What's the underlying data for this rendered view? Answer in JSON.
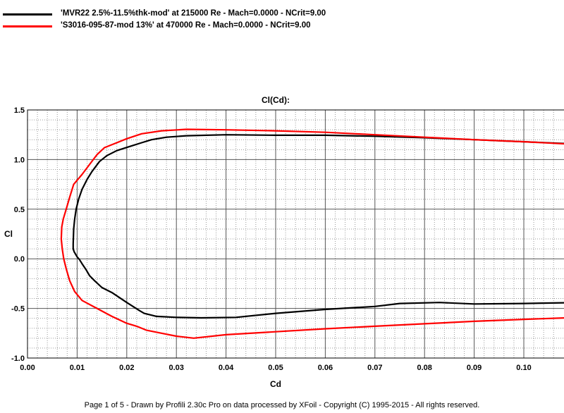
{
  "chart_data": {
    "type": "line",
    "title": "Cl(Cd):",
    "xlabel": "Cd",
    "ylabel": "Cl",
    "xlim": [
      0.0,
      0.105
    ],
    "ylim": [
      -1.0,
      1.5
    ],
    "xticks": [
      "0.00",
      "0.01",
      "0.02",
      "0.03",
      "0.04",
      "0.05",
      "0.06",
      "0.07",
      "0.08",
      "0.09",
      "0.10"
    ],
    "xtick_values": [
      0.0,
      0.01,
      0.02,
      0.03,
      0.04,
      0.05,
      0.06,
      0.07,
      0.08,
      0.09,
      0.1
    ],
    "yticks": [
      "-1.0",
      "-0.5",
      "0.0",
      "0.5",
      "1.0",
      "1.5"
    ],
    "ytick_values": [
      -1.0,
      -0.5,
      0.0,
      0.5,
      1.0,
      1.5
    ],
    "grid": true,
    "legend_position": "top-left, above plot",
    "series": [
      {
        "name": "'MVR22 2.5%-11.5%thk-mod' at 215000 Re - Mach=0.0000 - NCrit=9.00",
        "color": "#000000",
        "points": [
          [
            0.1115,
            -0.44
          ],
          [
            0.1,
            -0.45
          ],
          [
            0.09,
            -0.455
          ],
          [
            0.083,
            -0.44
          ],
          [
            0.075,
            -0.45
          ],
          [
            0.07,
            -0.48
          ],
          [
            0.06,
            -0.51
          ],
          [
            0.05,
            -0.55
          ],
          [
            0.042,
            -0.59
          ],
          [
            0.035,
            -0.595
          ],
          [
            0.03,
            -0.59
          ],
          [
            0.026,
            -0.58
          ],
          [
            0.0235,
            -0.55
          ],
          [
            0.0225,
            -0.52
          ],
          [
            0.02,
            -0.44
          ],
          [
            0.017,
            -0.34
          ],
          [
            0.015,
            -0.29
          ],
          [
            0.0135,
            -0.22
          ],
          [
            0.0125,
            -0.17
          ],
          [
            0.0118,
            -0.11
          ],
          [
            0.011,
            -0.05
          ],
          [
            0.0105,
            -0.01
          ],
          [
            0.01,
            0.02
          ],
          [
            0.0094,
            0.07
          ],
          [
            0.0092,
            0.1
          ],
          [
            0.0092,
            0.15
          ],
          [
            0.0093,
            0.3
          ],
          [
            0.0095,
            0.4
          ],
          [
            0.0098,
            0.5
          ],
          [
            0.0103,
            0.6
          ],
          [
            0.011,
            0.7
          ],
          [
            0.012,
            0.8
          ],
          [
            0.013,
            0.88
          ],
          [
            0.0145,
            0.98
          ],
          [
            0.016,
            1.04
          ],
          [
            0.018,
            1.09
          ],
          [
            0.0205,
            1.13
          ],
          [
            0.023,
            1.17
          ],
          [
            0.025,
            1.2
          ],
          [
            0.028,
            1.225
          ],
          [
            0.032,
            1.24
          ],
          [
            0.04,
            1.25
          ],
          [
            0.05,
            1.245
          ],
          [
            0.06,
            1.245
          ],
          [
            0.07,
            1.235
          ],
          [
            0.08,
            1.22
          ],
          [
            0.09,
            1.2
          ],
          [
            0.1,
            1.18
          ],
          [
            0.1115,
            1.155
          ]
        ]
      },
      {
        "name": "'S3016-095-87-mod 13%' at 470000 Re - Mach=0.0000 - NCrit=9.00",
        "color": "#ff0000",
        "points": [
          [
            0.1115,
            -0.59
          ],
          [
            0.1,
            -0.61
          ],
          [
            0.09,
            -0.63
          ],
          [
            0.08,
            -0.655
          ],
          [
            0.07,
            -0.68
          ],
          [
            0.06,
            -0.705
          ],
          [
            0.05,
            -0.735
          ],
          [
            0.04,
            -0.765
          ],
          [
            0.0335,
            -0.8
          ],
          [
            0.03,
            -0.78
          ],
          [
            0.027,
            -0.75
          ],
          [
            0.024,
            -0.72
          ],
          [
            0.022,
            -0.68
          ],
          [
            0.02,
            -0.65
          ],
          [
            0.017,
            -0.58
          ],
          [
            0.014,
            -0.5
          ],
          [
            0.011,
            -0.42
          ],
          [
            0.0095,
            -0.33
          ],
          [
            0.0085,
            -0.22
          ],
          [
            0.0078,
            -0.1
          ],
          [
            0.0073,
            0.0
          ],
          [
            0.007,
            0.1
          ],
          [
            0.0068,
            0.2
          ],
          [
            0.0069,
            0.32
          ],
          [
            0.0072,
            0.4
          ],
          [
            0.0078,
            0.5
          ],
          [
            0.0085,
            0.62
          ],
          [
            0.0093,
            0.75
          ],
          [
            0.011,
            0.85
          ],
          [
            0.0125,
            0.95
          ],
          [
            0.014,
            1.05
          ],
          [
            0.0155,
            1.12
          ],
          [
            0.018,
            1.17
          ],
          [
            0.02,
            1.21
          ],
          [
            0.023,
            1.26
          ],
          [
            0.027,
            1.29
          ],
          [
            0.032,
            1.305
          ],
          [
            0.04,
            1.3
          ],
          [
            0.05,
            1.29
          ],
          [
            0.06,
            1.275
          ],
          [
            0.07,
            1.25
          ],
          [
            0.08,
            1.225
          ],
          [
            0.09,
            1.2
          ],
          [
            0.1,
            1.18
          ],
          [
            0.1115,
            1.15
          ]
        ]
      }
    ]
  },
  "footer": "Page 1 of 5    -    Drawn by Profili 2.30c Pro on data processed by  XFoil - Copyright (C) 1995-2015 - All rights reserved."
}
